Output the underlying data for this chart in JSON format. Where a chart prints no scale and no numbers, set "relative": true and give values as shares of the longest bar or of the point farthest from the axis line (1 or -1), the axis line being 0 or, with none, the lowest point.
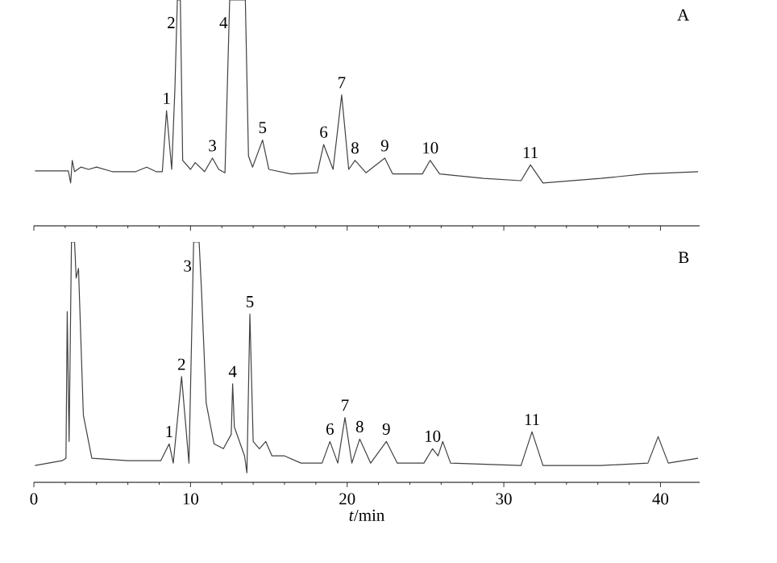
{
  "chart_data": [
    {
      "type": "line",
      "relative": true,
      "xlim": [
        0,
        42.5
      ],
      "xticks": [
        0,
        10,
        20,
        30,
        40
      ],
      "tick_labels": false,
      "x": [
        0.07,
        2.2,
        2.35,
        2.45,
        2.6,
        3.0,
        3.5,
        4.0,
        5.0,
        6.5,
        7.2,
        7.8,
        8.2,
        8.47,
        8.8,
        9.0,
        9.16,
        9.35,
        9.5,
        10.0,
        10.3,
        10.9,
        11.4,
        11.8,
        12.2,
        12.5,
        13.5,
        13.7,
        13.96,
        14.6,
        15.0,
        16.4,
        18.1,
        18.5,
        19.1,
        19.65,
        20.1,
        20.5,
        21.2,
        22.4,
        22.9,
        24.8,
        25.3,
        25.9,
        28.7,
        31.1,
        31.7,
        32.5,
        36.2,
        39.0,
        42.4
      ],
      "series": [
        {
          "color": "#404040",
          "values": [
            0.243,
            0.243,
            0.19,
            0.29,
            0.24,
            0.26,
            0.25,
            0.26,
            0.24,
            0.24,
            0.26,
            0.24,
            0.24,
            0.51,
            0.25,
            0.6,
            1,
            1,
            0.29,
            0.25,
            0.28,
            0.24,
            0.3,
            0.25,
            0.235,
            1,
            1,
            0.31,
            0.26,
            0.38,
            0.25,
            0.23,
            0.235,
            0.36,
            0.25,
            0.58,
            0.25,
            0.29,
            0.235,
            0.3,
            0.23,
            0.23,
            0.29,
            0.23,
            0.21,
            0.2,
            0.27,
            0.19,
            0.21,
            0.23,
            0.24
          ]
        }
      ],
      "annotations": [
        "A",
        {
          "text": "1",
          "x": 8.47,
          "y": 0.51
        },
        {
          "text": "2",
          "x": 9.16,
          "y": 1
        },
        {
          "text": "3",
          "x": 11.4,
          "y": 0.3
        },
        {
          "text": "4",
          "x": 12.5,
          "y": 1
        },
        {
          "text": "5",
          "x": 14.6,
          "y": 0.38
        },
        {
          "text": "6",
          "x": 18.5,
          "y": 0.36
        },
        {
          "text": "7",
          "x": 19.65,
          "y": 0.58
        },
        {
          "text": "8",
          "x": 20.5,
          "y": 0.29
        },
        {
          "text": "9",
          "x": 22.4,
          "y": 0.3
        },
        {
          "text": "10",
          "x": 25.3,
          "y": 0.29
        },
        {
          "text": "11",
          "x": 31.7,
          "y": 0.27
        }
      ]
    },
    {
      "type": "line",
      "relative": true,
      "xlim": [
        0,
        42.5
      ],
      "xticks": [
        0,
        10,
        20,
        30,
        40
      ],
      "tick_labels": "x",
      "xlabel": "*t*/min",
      "x": [
        0.07,
        1.8,
        2.05,
        2.13,
        2.25,
        2.4,
        2.6,
        2.7,
        2.85,
        3.16,
        3.7,
        6,
        8.1,
        8.64,
        8.9,
        9.43,
        9.9,
        10.2,
        10.55,
        10.7,
        11.0,
        11.5,
        12.1,
        12.6,
        12.69,
        12.8,
        13.45,
        13.6,
        13.79,
        14.0,
        14.4,
        14.8,
        15.2,
        16.0,
        17.05,
        18.4,
        18.9,
        19.4,
        19.86,
        20.3,
        20.8,
        21.5,
        22.5,
        23.2,
        24.9,
        25.45,
        25.8,
        26.1,
        26.6,
        31.1,
        31.8,
        32.5,
        36.2,
        39.2,
        39.85,
        40.5,
        42.4
      ],
      "series": [
        {
          "color": "#404040",
          "values": [
            0.07,
            0.09,
            0.1,
            0.71,
            0.17,
            1,
            1,
            0.85,
            0.89,
            0.28,
            0.1,
            0.09,
            0.09,
            0.16,
            0.08,
            0.44,
            0.08,
            1,
            1,
            0.8,
            0.33,
            0.16,
            0.14,
            0.2,
            0.41,
            0.23,
            0.11,
            0.04,
            0.7,
            0.17,
            0.14,
            0.17,
            0.11,
            0.11,
            0.08,
            0.08,
            0.17,
            0.08,
            0.27,
            0.08,
            0.18,
            0.08,
            0.17,
            0.08,
            0.08,
            0.14,
            0.11,
            0.17,
            0.08,
            0.07,
            0.21,
            0.07,
            0.07,
            0.08,
            0.19,
            0.08,
            0.1
          ]
        }
      ],
      "annotations": [
        "B",
        {
          "text": "1",
          "x": 8.64,
          "y": 0.16
        },
        {
          "text": "2",
          "x": 9.43,
          "y": 0.44
        },
        {
          "text": "3",
          "x": 10.2,
          "y": 1
        },
        {
          "text": "4",
          "x": 12.69,
          "y": 0.41
        },
        {
          "text": "5",
          "x": 13.79,
          "y": 0.7
        },
        {
          "text": "6",
          "x": 18.9,
          "y": 0.17
        },
        {
          "text": "7",
          "x": 19.86,
          "y": 0.27
        },
        {
          "text": "8",
          "x": 20.8,
          "y": 0.18
        },
        {
          "text": "9",
          "x": 22.5,
          "y": 0.17
        },
        {
          "text": "10",
          "x": 25.45,
          "y": 0.14
        },
        {
          "text": "11",
          "x": 31.8,
          "y": 0.21
        }
      ]
    }
  ]
}
